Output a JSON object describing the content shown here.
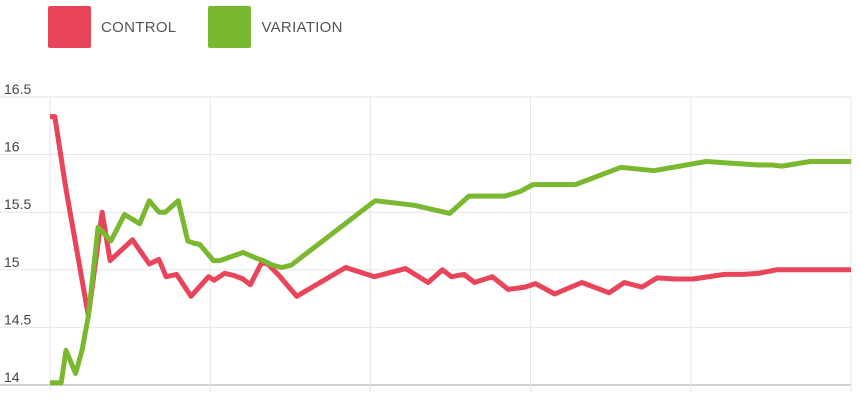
{
  "legend": {
    "items": [
      {
        "label": "CONTROL",
        "color": "#e8445a"
      },
      {
        "label": "VARIATION",
        "color": "#7ab830"
      }
    ]
  },
  "chart_data": {
    "type": "line",
    "title": "",
    "xlabel": "",
    "ylabel": "",
    "ylim": [
      14,
      16.5
    ],
    "xlim": [
      0,
      100
    ],
    "yticks": [
      "16.5",
      "16",
      "15.5",
      "15",
      "14.5",
      "14"
    ],
    "ytick_values": [
      16.5,
      16,
      15.5,
      15,
      14.5,
      14
    ],
    "xgrid": [
      0,
      20,
      40,
      60,
      80,
      100
    ],
    "grid": true,
    "legend_position": "top-left",
    "series": [
      {
        "name": "CONTROL",
        "color": "#e8445a",
        "x": [
          0,
          0.6,
          2,
          4.8,
          6.5,
          7.5,
          10.3,
          12.4,
          13.6,
          14.5,
          15.8,
          17.6,
          19.8,
          20.5,
          21.8,
          23,
          24.1,
          25,
          26.4,
          27.2,
          28.6,
          30.8,
          36.9,
          40.5,
          44.4,
          47.2,
          49,
          50.1,
          51.7,
          53,
          55.2,
          57.2,
          59.3,
          60.6,
          63,
          66.4,
          69.8,
          71.7,
          73.9,
          75.8,
          78,
          80.3,
          84.2,
          86.5,
          88.5,
          90.7,
          94,
          96,
          97.5,
          100
        ],
        "values": [
          16.33,
          16.33,
          15.7,
          14.6,
          15.5,
          15.08,
          15.26,
          15.05,
          15.09,
          14.94,
          14.96,
          14.77,
          14.94,
          14.91,
          14.97,
          14.95,
          14.92,
          14.87,
          15.06,
          15.05,
          14.95,
          14.77,
          15.02,
          14.94,
          15.01,
          14.89,
          15,
          14.94,
          14.96,
          14.89,
          14.94,
          14.83,
          14.85,
          14.88,
          14.79,
          14.89,
          14.8,
          14.89,
          14.85,
          14.93,
          14.92,
          14.92,
          14.96,
          14.96,
          14.97,
          15,
          15,
          15,
          15,
          15
        ]
      },
      {
        "name": "VARIATION",
        "color": "#7ab830",
        "x": [
          0,
          0.6,
          1.4,
          2,
          2.6,
          3.2,
          4,
          4.8,
          6,
          7.6,
          9.3,
          11.2,
          12.4,
          13.6,
          14.4,
          16,
          17.2,
          18,
          18.7,
          20.4,
          21.2,
          24.1,
          25.8,
          26.6,
          27.8,
          28.9,
          30.1,
          40.6,
          45.5,
          49.9,
          52.3,
          56.8,
          58.7,
          60.3,
          61.2,
          63.7,
          65.6,
          71.3,
          75.4,
          81.9,
          88.4,
          90.1,
          91.4,
          94.9,
          96.4,
          98.8,
          100
        ],
        "values": [
          14.02,
          14.02,
          14.02,
          14.3,
          14.2,
          14.1,
          14.3,
          14.6,
          15.37,
          15.25,
          15.48,
          15.4,
          15.6,
          15.5,
          15.5,
          15.6,
          15.25,
          15.23,
          15.22,
          15.08,
          15.08,
          15.15,
          15.1,
          15.08,
          15.04,
          15.02,
          15.04,
          15.6,
          15.56,
          15.49,
          15.64,
          15.64,
          15.68,
          15.74,
          15.74,
          15.74,
          15.74,
          15.89,
          15.86,
          15.94,
          15.91,
          15.91,
          15.9,
          15.94,
          15.94,
          15.94,
          15.94
        ]
      }
    ]
  }
}
